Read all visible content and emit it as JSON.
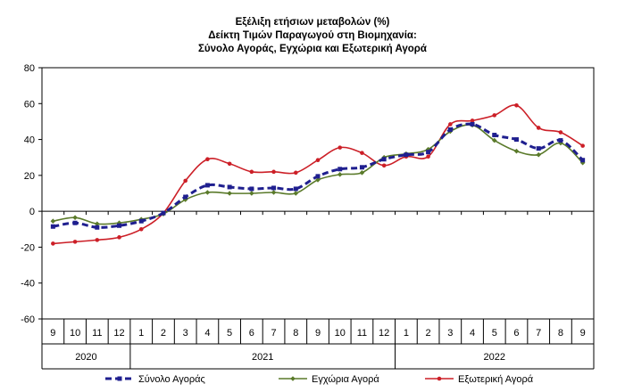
{
  "chart_data": {
    "type": "line",
    "title_lines": [
      "Εξέλιξη ετήσιων μεταβολών (%)",
      "Δείκτη Τιμών Παραγωγού στη Βιομηχανία:",
      "Σύνολο Αγοράς, Εγχώρια και Εξωτερική Αγορά"
    ],
    "xlabel": "",
    "ylabel": "",
    "ylim": [
      -60,
      80
    ],
    "yticks": [
      -60,
      -40,
      -20,
      0,
      20,
      40,
      60,
      80
    ],
    "categories": [
      "9",
      "10",
      "11",
      "12",
      "1",
      "2",
      "3",
      "4",
      "5",
      "6",
      "7",
      "8",
      "9",
      "10",
      "11",
      "12",
      "1",
      "2",
      "3",
      "4",
      "5",
      "6",
      "7",
      "8",
      "9"
    ],
    "years": [
      {
        "label": "2020",
        "start": 0,
        "end": 3
      },
      {
        "label": "2021",
        "start": 4,
        "end": 15
      },
      {
        "label": "2022",
        "start": 16,
        "end": 24
      }
    ],
    "grid": false,
    "legend_position": "bottom",
    "series": [
      {
        "name": "Σύνολο Αγοράς",
        "color": "#1f1f8f",
        "style": "dashed-square",
        "values": [
          -8.5,
          -6.5,
          -9.0,
          -8.0,
          -5.5,
          -1.0,
          8.0,
          14.5,
          13.5,
          12.5,
          13.0,
          12.5,
          19.5,
          23.5,
          24.5,
          29.0,
          31.5,
          33.0,
          45.5,
          48.5,
          42.5,
          40.0,
          35.0,
          39.5,
          28.5
        ]
      },
      {
        "name": "Εγχώρια Αγορά",
        "color": "#5a7a2a",
        "style": "solid-diamond",
        "values": [
          -5.5,
          -3.5,
          -7.0,
          -6.5,
          -4.5,
          -1.5,
          6.5,
          10.5,
          10.0,
          10.0,
          10.5,
          10.0,
          17.5,
          20.5,
          21.5,
          30.0,
          32.0,
          34.5,
          44.5,
          48.0,
          39.5,
          33.5,
          31.5,
          38.0,
          27.0
        ]
      },
      {
        "name": "Εξωτερική Αγορά",
        "color": "#cc1f27",
        "style": "solid-circle",
        "values": [
          -18.0,
          -17.0,
          -16.0,
          -14.5,
          -10.0,
          -1.0,
          17.0,
          29.0,
          26.5,
          22.0,
          22.0,
          21.5,
          28.5,
          35.5,
          32.5,
          25.5,
          30.5,
          30.5,
          48.5,
          50.5,
          53.5,
          59.0,
          46.5,
          44.0,
          36.5
        ]
      }
    ]
  }
}
